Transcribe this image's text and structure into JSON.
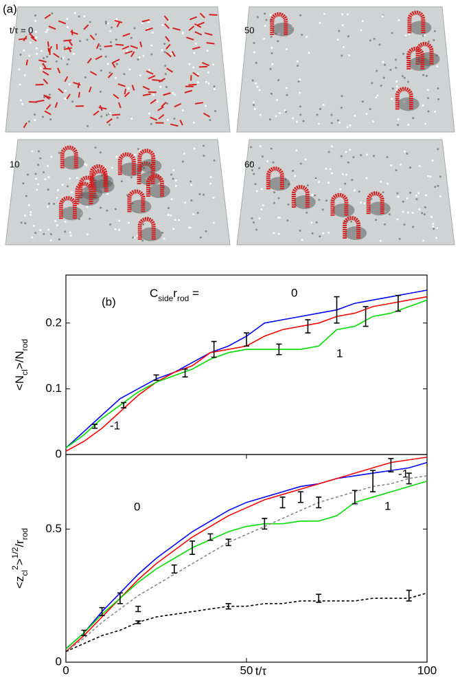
{
  "panel_a": {
    "label": "(a)",
    "frames": [
      "t/τ = 0",
      "50",
      "10",
      "60"
    ]
  },
  "chart_data": [
    {
      "type": "line",
      "label": "(b)",
      "annotation": [
        {
          "text": "C"
        },
        {
          "sub": "side"
        },
        {
          "text": "r"
        },
        {
          "sub": "rod"
        },
        {
          "text": " = "
        }
      ],
      "ylabel": [
        {
          "text": "<N"
        },
        {
          "sub": "cl"
        },
        {
          "text": ">/N"
        },
        {
          "sub": "rod"
        }
      ],
      "xlim": [
        0,
        100
      ],
      "ylim": [
        0,
        0.273
      ],
      "yticks": [
        0,
        0.1,
        0.2
      ],
      "x": [
        0,
        5,
        10,
        15,
        20,
        25,
        30,
        35,
        40,
        45,
        50,
        55,
        60,
        65,
        70,
        75,
        80,
        85,
        90,
        95,
        100
      ],
      "series": [
        {
          "name": "0",
          "color": "#0000ff",
          "values": [
            0.01,
            0.035,
            0.06,
            0.085,
            0.1,
            0.115,
            0.125,
            0.14,
            0.155,
            0.165,
            0.18,
            0.2,
            0.205,
            0.21,
            0.215,
            0.22,
            0.23,
            0.235,
            0.24,
            0.245,
            0.25
          ]
        },
        {
          "name": "-1",
          "color": "#ff0000",
          "values": [
            0.005,
            0.02,
            0.04,
            0.065,
            0.09,
            0.11,
            0.125,
            0.135,
            0.155,
            0.16,
            0.165,
            0.18,
            0.19,
            0.195,
            0.2,
            0.21,
            0.215,
            0.225,
            0.23,
            0.235,
            0.24
          ]
        },
        {
          "name": "1",
          "color": "#00dd00",
          "values": [
            0.01,
            0.03,
            0.055,
            0.075,
            0.095,
            0.11,
            0.12,
            0.13,
            0.145,
            0.155,
            0.16,
            0.16,
            0.16,
            0.16,
            0.165,
            0.19,
            0.195,
            0.21,
            0.215,
            0.225,
            0.235
          ]
        }
      ],
      "errorbars": {
        "color": "#000000",
        "x": [
          8,
          16,
          25,
          33,
          41,
          50,
          59,
          67,
          75,
          83,
          92
        ],
        "values": [
          0.043,
          0.075,
          0.117,
          0.124,
          0.16,
          0.175,
          0.16,
          0.195,
          0.22,
          0.21,
          0.23
        ],
        "errors": [
          0.003,
          0.004,
          0.004,
          0.006,
          0.012,
          0.01,
          0.008,
          0.01,
          0.02,
          0.015,
          0.012
        ]
      }
    },
    {
      "type": "line",
      "ylabel": [
        {
          "text": "<z"
        },
        {
          "sub": "cl"
        },
        {
          "sup": "2"
        },
        {
          "text": ">"
        },
        {
          "sup": "1/2"
        },
        {
          "text": "/r"
        },
        {
          "sub": "rod"
        }
      ],
      "xlabel": "t/τ",
      "xlim": [
        0,
        100
      ],
      "ylim": [
        0,
        0.78
      ],
      "xticks": [
        0,
        50,
        100
      ],
      "yticks": [
        0,
        0.5
      ],
      "x": [
        0,
        5,
        10,
        15,
        20,
        25,
        30,
        35,
        40,
        45,
        50,
        55,
        60,
        65,
        70,
        75,
        80,
        85,
        90,
        95,
        100
      ],
      "series": [
        {
          "name": "0",
          "color": "#0000ff",
          "values": [
            0.05,
            0.11,
            0.19,
            0.26,
            0.33,
            0.39,
            0.44,
            0.49,
            0.53,
            0.57,
            0.6,
            0.62,
            0.64,
            0.66,
            0.67,
            0.69,
            0.7,
            0.71,
            0.72,
            0.73,
            0.75
          ]
        },
        {
          "name": "-1",
          "color": "#ff0000",
          "values": [
            0.04,
            0.1,
            0.17,
            0.24,
            0.31,
            0.37,
            0.42,
            0.47,
            0.51,
            0.55,
            0.58,
            0.61,
            0.63,
            0.65,
            0.67,
            0.69,
            0.71,
            0.73,
            0.75,
            0.76,
            0.77
          ]
        },
        {
          "name": "1",
          "color": "#00dd00",
          "values": [
            0.05,
            0.11,
            0.18,
            0.24,
            0.3,
            0.35,
            0.39,
            0.43,
            0.46,
            0.49,
            0.51,
            0.52,
            0.52,
            0.53,
            0.53,
            0.55,
            0.6,
            0.62,
            0.64,
            0.66,
            0.68
          ]
        },
        {
          "color": "#888888",
          "dash": true,
          "values": [
            0.04,
            0.09,
            0.15,
            0.2,
            0.25,
            0.29,
            0.33,
            0.37,
            0.41,
            0.45,
            0.48,
            0.51,
            0.54,
            0.57,
            0.6,
            0.62,
            0.64,
            0.66,
            0.67,
            0.69,
            0.7
          ]
        },
        {
          "color": "#000000",
          "dash": true,
          "values": [
            0.04,
            0.07,
            0.1,
            0.12,
            0.15,
            0.17,
            0.18,
            0.19,
            0.2,
            0.21,
            0.21,
            0.22,
            0.22,
            0.23,
            0.23,
            0.23,
            0.23,
            0.24,
            0.24,
            0.24,
            0.26
          ]
        }
      ],
      "errorbars": {
        "color": "#000000",
        "x": [
          5,
          10,
          15,
          20,
          20,
          30,
          35,
          40,
          45,
          45,
          55,
          60,
          65,
          70,
          70,
          80,
          85,
          90,
          95,
          95
        ],
        "values": [
          0.11,
          0.19,
          0.24,
          0.2,
          0.15,
          0.35,
          0.43,
          0.47,
          0.45,
          0.21,
          0.52,
          0.6,
          0.62,
          0.6,
          0.24,
          0.62,
          0.68,
          0.74,
          0.69,
          0.25
        ],
        "errors": [
          0.01,
          0.015,
          0.02,
          0.01,
          0.005,
          0.015,
          0.025,
          0.012,
          0.012,
          0.01,
          0.02,
          0.02,
          0.02,
          0.02,
          0.015,
          0.025,
          0.04,
          0.025,
          0.02,
          0.02
        ]
      }
    }
  ]
}
